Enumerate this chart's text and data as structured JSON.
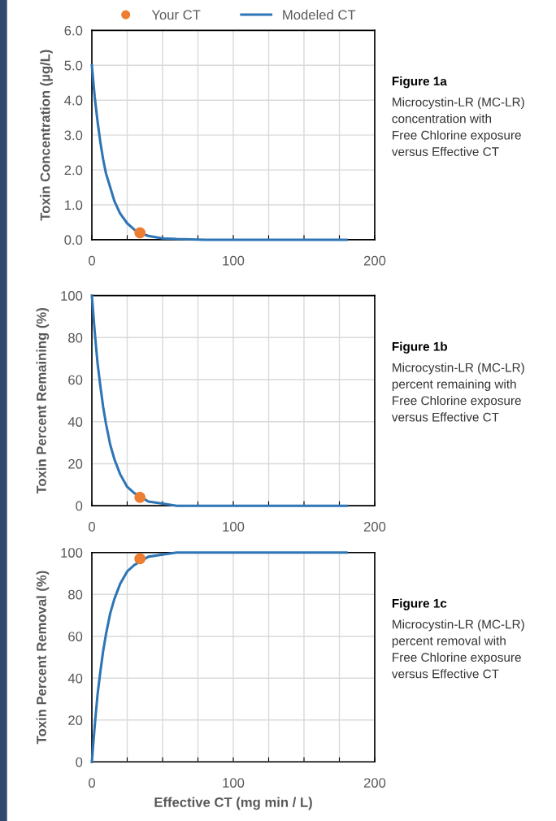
{
  "chart_data": [
    {
      "type": "line",
      "ylabel": "Toxin Concentration (µg/L)",
      "legend": "top",
      "annotations": [
        "Figure 1a",
        "Microcystin-LR (MC-LR)\nconcentration with\nFree Chlorine exposure\nversus Effective CT"
      ],
      "xlim": [
        0,
        200
      ],
      "xticks": [
        0,
        {
          "value": 25,
          "label": null
        },
        {
          "value": 50,
          "label": null
        },
        {
          "value": 75,
          "label": null
        },
        100,
        {
          "value": 125,
          "label": null
        },
        {
          "value": 150,
          "label": null
        },
        {
          "value": 175,
          "label": null
        },
        200
      ],
      "ylim": [
        0,
        6
      ],
      "yticks": [
        {
          "value": 0,
          "label": "0.0"
        },
        {
          "value": 1,
          "label": "1.0"
        },
        {
          "value": 2,
          "label": "2.0"
        },
        {
          "value": 3,
          "label": "3.0"
        },
        {
          "value": 4,
          "label": "4.0"
        },
        {
          "value": 5,
          "label": "5.0"
        },
        {
          "value": 6,
          "label": "6.0"
        }
      ],
      "grid": true,
      "series": [
        {
          "name": "Your CT",
          "type": "scatter",
          "marker": "circle",
          "color": "#ed7d31",
          "x": [
            34
          ],
          "values": [
            0.2
          ]
        },
        {
          "name": "Modeled CT",
          "color": "#2e75b6",
          "x": [
            0,
            2,
            4,
            6,
            8,
            10,
            13,
            16,
            20,
            25,
            30,
            35,
            40,
            50,
            60,
            80,
            100,
            140,
            180
          ],
          "values": [
            5.0,
            4.1,
            3.4,
            2.8,
            2.3,
            1.9,
            1.5,
            1.1,
            0.75,
            0.47,
            0.29,
            0.18,
            0.11,
            0.04,
            0.02,
            0,
            0,
            0,
            0
          ]
        }
      ]
    },
    {
      "type": "line",
      "ylabel": "Toxin Percent Remaining (%)",
      "annotations": [
        "Figure 1b",
        "Microcystin-LR (MC-LR)\npercent remaining with\nFree Chlorine exposure\nversus Effective CT"
      ],
      "xlim": [
        0,
        200
      ],
      "xticks": [
        0,
        {
          "value": 25,
          "label": null
        },
        {
          "value": 50,
          "label": null
        },
        {
          "value": 75,
          "label": null
        },
        100,
        {
          "value": 125,
          "label": null
        },
        {
          "value": 150,
          "label": null
        },
        {
          "value": 175,
          "label": null
        },
        200
      ],
      "ylim": [
        0,
        100
      ],
      "yticks": [
        0,
        20,
        40,
        60,
        80,
        100
      ],
      "grid": true,
      "series": [
        {
          "type": "scatter",
          "marker": "circle",
          "color": "#ed7d31",
          "x": [
            34
          ],
          "values": [
            4
          ]
        },
        {
          "color": "#2e75b6",
          "x": [
            0,
            2,
            4,
            6,
            8,
            10,
            13,
            16,
            20,
            25,
            30,
            35,
            40,
            50,
            60,
            80,
            100,
            140,
            180
          ],
          "values": [
            100,
            83,
            68,
            57,
            47,
            39,
            29,
            22,
            15,
            9,
            6,
            4,
            2,
            1,
            0,
            0,
            0,
            0,
            0
          ]
        }
      ]
    },
    {
      "type": "line",
      "ylabel": "Toxin Percent Removal (%)",
      "xlabel": "Effective CT (mg min / L)",
      "annotations": [
        "Figure 1c",
        "Microcystin-LR (MC-LR)\npercent removal with\nFree Chlorine exposure\nversus Effective CT"
      ],
      "xlim": [
        0,
        200
      ],
      "xticks": [
        0,
        {
          "value": 25,
          "label": null
        },
        {
          "value": 50,
          "label": null
        },
        {
          "value": 75,
          "label": null
        },
        100,
        {
          "value": 125,
          "label": null
        },
        {
          "value": 150,
          "label": null
        },
        {
          "value": 175,
          "label": null
        },
        200
      ],
      "ylim": [
        0,
        100
      ],
      "yticks": [
        0,
        20,
        40,
        60,
        80,
        100
      ],
      "grid": true,
      "series": [
        {
          "type": "scatter",
          "marker": "circle",
          "color": "#ed7d31",
          "x": [
            34
          ],
          "values": [
            97
          ]
        },
        {
          "color": "#2e75b6",
          "x": [
            0,
            2,
            4,
            6,
            8,
            10,
            13,
            16,
            20,
            25,
            30,
            35,
            40,
            50,
            60,
            80,
            100,
            140,
            180
          ],
          "values": [
            0,
            17,
            32,
            43,
            53,
            61,
            71,
            78,
            85,
            91,
            94,
            96,
            98,
            99,
            100,
            100,
            100,
            100,
            100
          ]
        }
      ]
    }
  ]
}
